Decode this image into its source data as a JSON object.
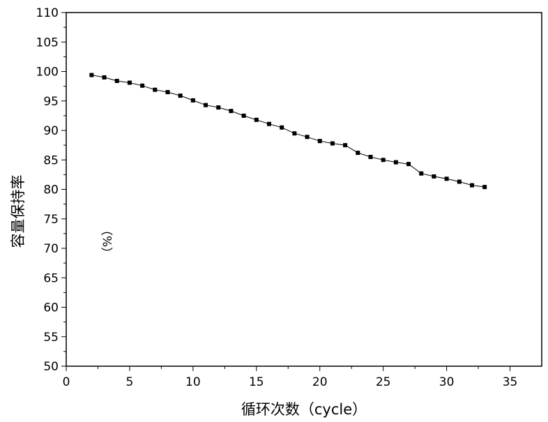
{
  "chart_data": {
    "type": "line",
    "xlabel": "循环次数（cycle）",
    "ylabel": "容量保持率",
    "yunit": "（%）",
    "xlim": [
      0,
      37.5
    ],
    "ylim": [
      50,
      110
    ],
    "xticks": [
      0,
      5,
      10,
      15,
      20,
      25,
      30,
      35
    ],
    "yticks": [
      50,
      55,
      60,
      65,
      70,
      75,
      80,
      85,
      90,
      95,
      100,
      105,
      110
    ],
    "grid": false,
    "legend": "none",
    "marker": "square",
    "line_color": "#000000",
    "series": [
      {
        "x": [
          2,
          3,
          4,
          5,
          6,
          7,
          8,
          9,
          10,
          11,
          12,
          13,
          14,
          15,
          16,
          17,
          18,
          19,
          20,
          21,
          22,
          23,
          24,
          25,
          26,
          27,
          28,
          29,
          30,
          31,
          32,
          33
        ],
        "values": [
          99.4,
          99.0,
          98.4,
          98.1,
          97.6,
          96.9,
          96.5,
          95.9,
          95.1,
          94.3,
          93.9,
          93.3,
          92.5,
          91.8,
          91.1,
          90.5,
          89.5,
          88.9,
          88.2,
          87.8,
          87.5,
          86.2,
          85.5,
          85.0,
          84.6,
          84.3,
          82.7,
          82.2,
          81.8,
          81.3,
          80.7,
          80.4
        ]
      }
    ]
  }
}
